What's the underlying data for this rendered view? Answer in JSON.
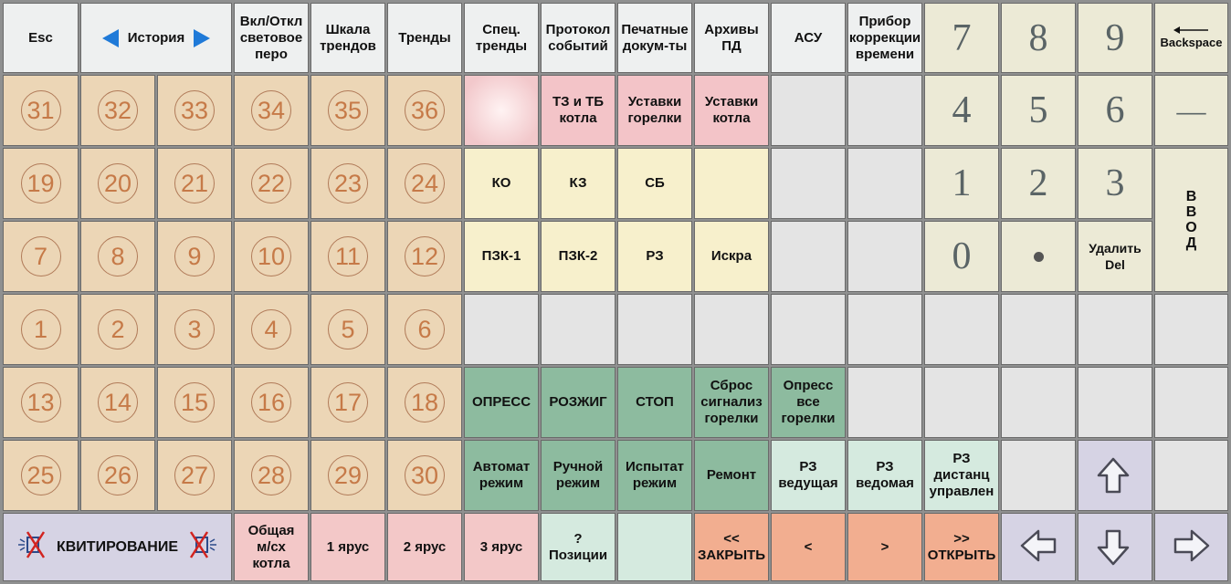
{
  "top_row": {
    "esc": "Esc",
    "history": "История",
    "pen_toggle": "Вкл/Откл\nсветовое\nперо",
    "trend_scale": "Шкала\nтрендов",
    "trends": "Тренды",
    "spec_trends": "Спец.\nтренды",
    "event_log": "Протокол\nсобытий",
    "print_docs": "Печатные\nдокум-ты",
    "archives": "Архивы\nПД",
    "asu": "АСУ",
    "time_correction": "Прибор\nкоррекции\nвремени",
    "backspace": "Backspace"
  },
  "numbered": [
    [
      "31",
      "32",
      "33",
      "34",
      "35",
      "36"
    ],
    [
      "19",
      "20",
      "21",
      "22",
      "23",
      "24"
    ],
    [
      "7",
      "8",
      "9",
      "10",
      "11",
      "12"
    ],
    [
      "1",
      "2",
      "3",
      "4",
      "5",
      "6"
    ],
    [
      "13",
      "14",
      "15",
      "16",
      "17",
      "18"
    ],
    [
      "25",
      "26",
      "27",
      "28",
      "29",
      "30"
    ]
  ],
  "function_keys": {
    "tz_tb": "ТЗ и ТБ\nкотла",
    "burner_settings": "Уставки\nгорелки",
    "boiler_settings": "Уставки\nкотла",
    "ko": "КО",
    "kz": "КЗ",
    "sb": "СБ",
    "pzk1": "ПЗК-1",
    "pzk2": "ПЗК-2",
    "rz": "РЗ",
    "iskra": "Искра",
    "opress": "ОПРЕСС",
    "rozzhig": "РОЗЖИГ",
    "stop": "СТОП",
    "reset_burner": "Сброс\nсигнализ\nгорелки",
    "opress_all": "Опресс\nвсе\nгорелки",
    "auto_mode": "Автомат\nрежим",
    "manual_mode": "Ручной\nрежим",
    "test_mode": "Испытат\nрежим",
    "repair": "Ремонт",
    "rz_master": "РЗ\nведущая",
    "rz_slave": "РЗ\nведомая",
    "rz_remote": "РЗ\nдистанц\nуправлен"
  },
  "bottom_row": {
    "acknowledge": "КВИТИРОВАНИЕ",
    "common_scheme": "Общая\nм/сх\nкотла",
    "tier1": "1 ярус",
    "tier2": "2 ярус",
    "tier3": "3 ярус",
    "positions": "?\nПозиции",
    "close_all": "<<\nЗАКРЫТЬ",
    "less": "<",
    "more": ">",
    "open_all": ">>\nОТКРЫТЬ"
  },
  "keypad": {
    "k7": "7",
    "k8": "8",
    "k9": "9",
    "k4": "4",
    "k5": "5",
    "k6": "6",
    "minus": "—",
    "k1": "1",
    "k2": "2",
    "k3": "3",
    "k0": "0",
    "delete": "Удалить\nDel",
    "enter": "В\nВ\nО\nД"
  }
}
